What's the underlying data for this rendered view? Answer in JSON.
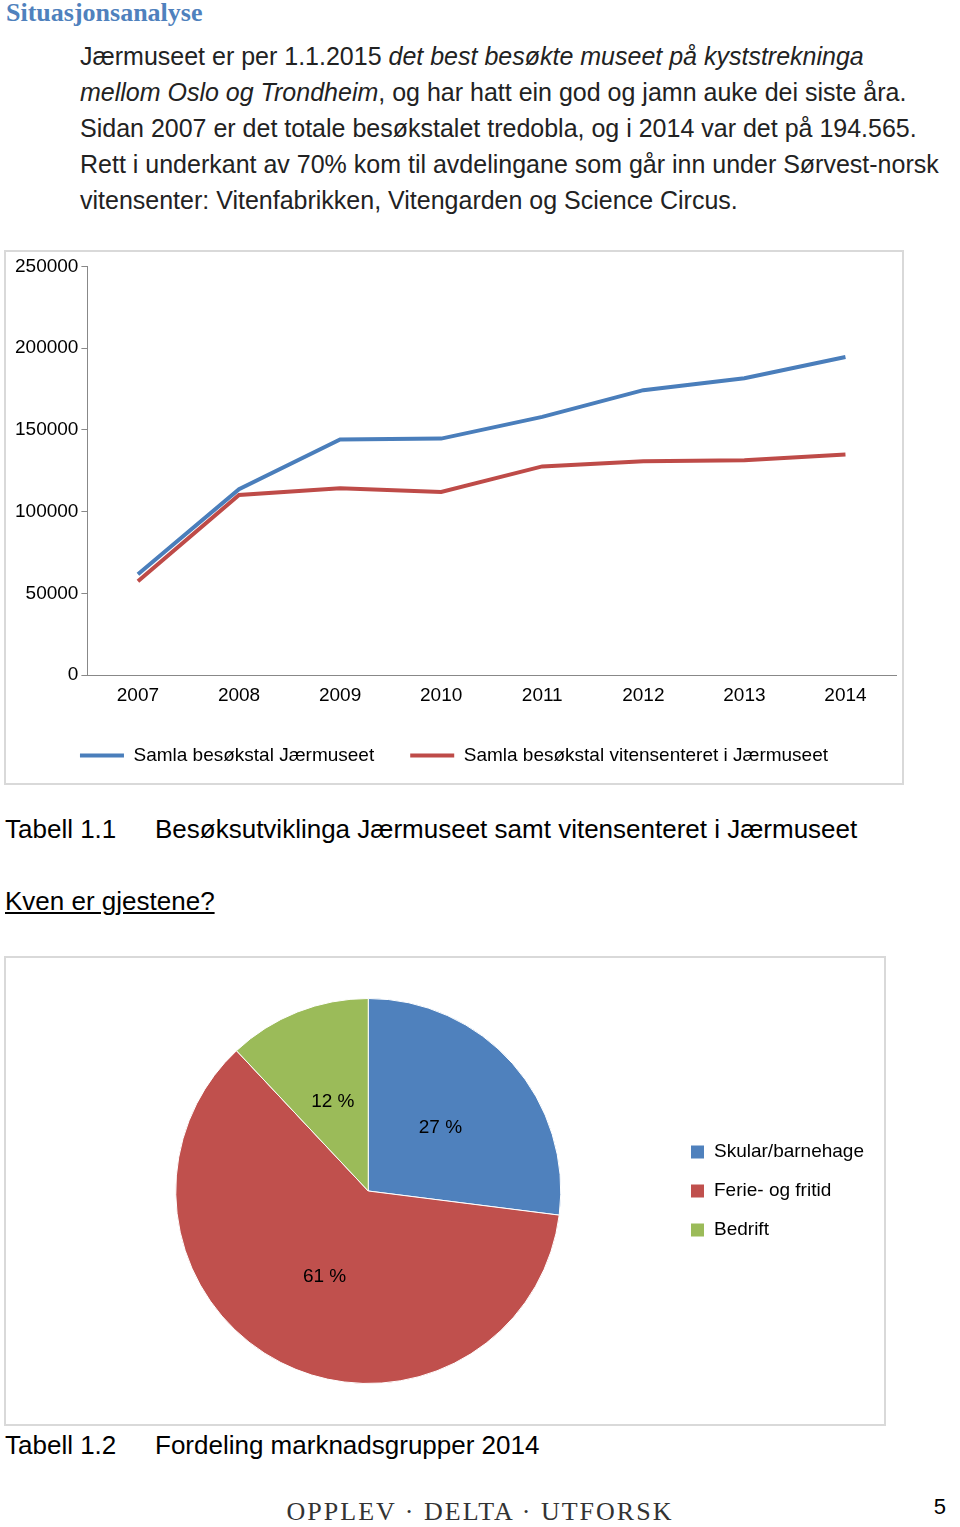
{
  "page": {
    "heading": "Situasjonsanalyse",
    "intro": [
      {
        "text": "Jærmuseet er per 1.1.2015 ",
        "style": "normal"
      },
      {
        "text": "det best besøkte museet på kyststrekninga mellom Oslo og Trondheim",
        "style": "italic"
      },
      {
        "text": ", og har hatt ein god og jamn auke dei siste åra. Sidan 2007 er det totale besøkstalet tredobla, og i 2014 var det på 194.565. Rett i underkant av 70% kom til avdelingane som går inn under Sørvest-norsk vitensenter: Vitenfabrikken, Vitengarden og Science Circus.",
        "style": "normal"
      }
    ],
    "captions": [
      {
        "label": "Tabell 1.1",
        "text": "Besøksutviklinga Jærmuseet samt vitensenteret i Jærmuseet"
      },
      {
        "label": "Tabell 1.2",
        "text": "Fordeling marknadsgrupper 2014"
      }
    ],
    "section_heading": "Kven er gjestene?",
    "footer": "OPPLEV · DELTA · UTFORSK",
    "page_number": 5
  },
  "chart_data": [
    {
      "type": "line",
      "categories": [
        "2007",
        "2008",
        "2009",
        "2010",
        "2011",
        "2012",
        "2013",
        "2014"
      ],
      "series": [
        {
          "name": "Samla besøkstal Jærmuseet",
          "color": "#4a7ebb",
          "values": [
            61700,
            113800,
            144100,
            144700,
            158000,
            174300,
            181600,
            194565
          ]
        },
        {
          "name": "Samla besøkstal vitensenteret i Jærmuseet",
          "color": "#be4b48",
          "values": [
            57500,
            110200,
            114400,
            112000,
            127700,
            130800,
            131400,
            135000
          ]
        }
      ],
      "ylim": [
        0,
        250000
      ],
      "yticks": [
        0,
        50000,
        100000,
        150000,
        200000,
        250000
      ],
      "grid": false,
      "legend": "bottom"
    },
    {
      "type": "pie",
      "categories": [
        "Skular/barnehage",
        "Ferie- og fritid",
        "Bedrift"
      ],
      "values": [
        27,
        61,
        12
      ],
      "value_labels": [
        "27 %",
        "61 %",
        "12 %"
      ],
      "colors": [
        "#4f81bd",
        "#c0504d",
        "#9bbb59"
      ],
      "data_labels": true,
      "legend": "right"
    }
  ]
}
